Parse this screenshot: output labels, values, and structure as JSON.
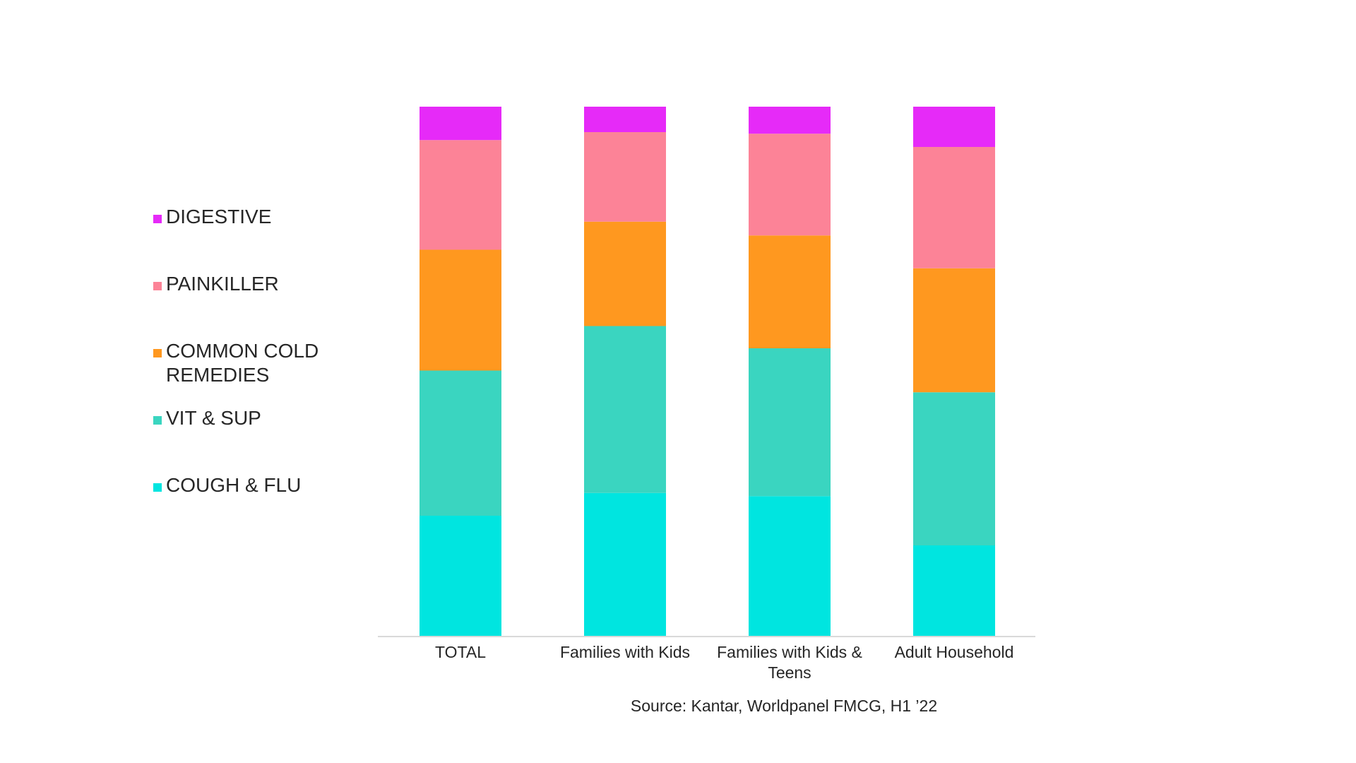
{
  "chart_data": {
    "type": "bar",
    "stacked": true,
    "normalized": true,
    "categories": [
      "TOTAL",
      "Families with Kids",
      "Families with Kids & Teens",
      "Adult Household"
    ],
    "series": [
      {
        "name": "COUGH & FLU",
        "color": "#00E5E0",
        "values": [
          22.8,
          27.1,
          26.5,
          17.2
        ]
      },
      {
        "name": "VIT & SUP",
        "color": "#3AD5C0",
        "values": [
          27.4,
          31.5,
          27.9,
          28.9
        ]
      },
      {
        "name": "COMMON COLD REMEDIES",
        "color": "#FF981F",
        "values": [
          22.8,
          19.7,
          21.3,
          23.4
        ]
      },
      {
        "name": "PAINKILLER",
        "color": "#FC8397",
        "values": [
          20.7,
          16.9,
          19.2,
          22.9
        ]
      },
      {
        "name": "DIGESTIVE",
        "color": "#E62AF8",
        "values": [
          6.3,
          4.8,
          5.1,
          7.6
        ]
      }
    ],
    "ylim": [
      0,
      100
    ],
    "legend_position": "left",
    "legend_order": [
      "DIGESTIVE",
      "PAINKILLER",
      "COMMON COLD REMEDIES",
      "VIT & SUP",
      "COUGH & FLU"
    ],
    "grid": false
  },
  "source": "Source: Kantar, Worldpanel FMCG, H1 ’22"
}
